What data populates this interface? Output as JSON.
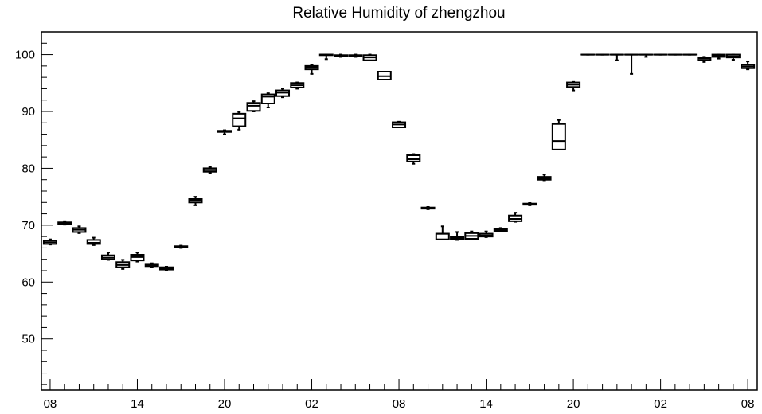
{
  "chart_data": {
    "type": "box",
    "title": "Relative Humidity of zhengzhou",
    "xlabel": "",
    "ylabel": "",
    "ylim": [
      41,
      104
    ],
    "y_ticks": [
      50,
      60,
      70,
      80,
      90,
      100
    ],
    "x_tick_labels": [
      "08",
      "14",
      "20",
      "02",
      "08",
      "14",
      "20",
      "02",
      "08"
    ],
    "x_tick_label_hours": [
      0,
      6,
      12,
      18,
      24,
      30,
      36,
      42,
      48
    ],
    "grid": false,
    "boxes": [
      {
        "hour": 0,
        "min": 66.6,
        "q1": 66.7,
        "median": 67.0,
        "q3": 67.3,
        "max": 67.5
      },
      {
        "hour": 1,
        "min": 70.1,
        "q1": 70.2,
        "median": 70.4,
        "q3": 70.5,
        "max": 70.7
      },
      {
        "hour": 2,
        "min": 68.6,
        "q1": 68.8,
        "median": 69.2,
        "q3": 69.5,
        "max": 69.8
      },
      {
        "hour": 3,
        "min": 66.5,
        "q1": 66.7,
        "median": 66.9,
        "q3": 67.4,
        "max": 67.8
      },
      {
        "hour": 4,
        "min": 63.9,
        "q1": 64.0,
        "median": 64.3,
        "q3": 64.7,
        "max": 65.2
      },
      {
        "hour": 5,
        "min": 62.3,
        "q1": 62.6,
        "median": 63.0,
        "q3": 63.5,
        "max": 63.9
      },
      {
        "hour": 6,
        "min": 63.6,
        "q1": 63.8,
        "median": 64.4,
        "q3": 64.8,
        "max": 65.2
      },
      {
        "hour": 7,
        "min": 62.7,
        "q1": 62.8,
        "median": 63.0,
        "q3": 63.2,
        "max": 63.3
      },
      {
        "hour": 8,
        "min": 62.1,
        "q1": 62.2,
        "median": 62.4,
        "q3": 62.6,
        "max": 62.7
      },
      {
        "hour": 9,
        "min": 66.0,
        "q1": 66.1,
        "median": 66.2,
        "q3": 66.3,
        "max": 66.4
      },
      {
        "hour": 10,
        "min": 73.5,
        "q1": 74.0,
        "median": 74.4,
        "q3": 74.6,
        "max": 75.0
      },
      {
        "hour": 11,
        "min": 79.2,
        "q1": 79.4,
        "median": 79.7,
        "q3": 80.0,
        "max": 80.2
      },
      {
        "hour": 12,
        "min": 86.0,
        "q1": 86.4,
        "median": 86.5,
        "q3": 86.6,
        "max": 86.7
      },
      {
        "hour": 13,
        "min": 86.8,
        "q1": 87.4,
        "median": 88.8,
        "q3": 89.6,
        "max": 89.9
      },
      {
        "hour": 14,
        "min": 90.0,
        "q1": 90.1,
        "median": 91.0,
        "q3": 91.5,
        "max": 91.8
      },
      {
        "hour": 15,
        "min": 90.7,
        "q1": 91.4,
        "median": 92.6,
        "q3": 93.0,
        "max": 93.2
      },
      {
        "hour": 16,
        "min": 92.5,
        "q1": 92.7,
        "median": 93.3,
        "q3": 93.7,
        "max": 94.0
      },
      {
        "hour": 17,
        "min": 94.0,
        "q1": 94.2,
        "median": 94.6,
        "q3": 95.0,
        "max": 95.1
      },
      {
        "hour": 18,
        "min": 96.6,
        "q1": 97.4,
        "median": 97.8,
        "q3": 98.0,
        "max": 98.2
      },
      {
        "hour": 19,
        "min": 99.2,
        "q1": 99.9,
        "median": 100.0,
        "q3": 100.0,
        "max": 100.0
      },
      {
        "hour": 20,
        "min": 99.6,
        "q1": 99.7,
        "median": 99.8,
        "q3": 99.9,
        "max": 100.0
      },
      {
        "hour": 21,
        "min": 99.6,
        "q1": 99.7,
        "median": 99.8,
        "q3": 99.9,
        "max": 100.0
      },
      {
        "hour": 22,
        "min": 99.0,
        "q1": 99.0,
        "median": 99.5,
        "q3": 99.9,
        "max": 100.0
      },
      {
        "hour": 23,
        "min": 95.6,
        "q1": 95.6,
        "median": 96.2,
        "q3": 97.0,
        "max": 97.0
      },
      {
        "hour": 24,
        "min": 87.2,
        "q1": 87.2,
        "median": 87.7,
        "q3": 88.1,
        "max": 88.2
      },
      {
        "hour": 25,
        "min": 80.8,
        "q1": 81.2,
        "median": 81.6,
        "q3": 82.3,
        "max": 82.5
      },
      {
        "hour": 26,
        "min": 72.8,
        "q1": 72.9,
        "median": 73.0,
        "q3": 73.1,
        "max": 73.2
      },
      {
        "hour": 27,
        "min": 67.5,
        "q1": 67.5,
        "median": 68.5,
        "q3": 68.5,
        "max": 69.8
      },
      {
        "hour": 28,
        "min": 67.4,
        "q1": 67.5,
        "median": 67.7,
        "q3": 67.9,
        "max": 68.8
      },
      {
        "hour": 29,
        "min": 67.5,
        "q1": 67.6,
        "median": 68.1,
        "q3": 68.6,
        "max": 68.9
      },
      {
        "hour": 30,
        "min": 67.9,
        "q1": 68.0,
        "median": 68.2,
        "q3": 68.5,
        "max": 68.9
      },
      {
        "hour": 31,
        "min": 68.9,
        "q1": 69.0,
        "median": 69.2,
        "q3": 69.4,
        "max": 69.5
      },
      {
        "hour": 32,
        "min": 70.6,
        "q1": 70.7,
        "median": 71.1,
        "q3": 71.7,
        "max": 72.2
      },
      {
        "hour": 33,
        "min": 73.5,
        "q1": 73.6,
        "median": 73.7,
        "q3": 73.8,
        "max": 73.9
      },
      {
        "hour": 34,
        "min": 77.9,
        "q1": 78.0,
        "median": 78.2,
        "q3": 78.5,
        "max": 78.9
      },
      {
        "hour": 35,
        "min": 83.3,
        "q1": 83.3,
        "median": 84.8,
        "q3": 87.8,
        "max": 88.5
      },
      {
        "hour": 36,
        "min": 93.7,
        "q1": 94.3,
        "median": 94.7,
        "q3": 95.1,
        "max": 95.2
      },
      {
        "hour": 37,
        "min": 100.0,
        "q1": 100.0,
        "median": 100.0,
        "q3": 100.0,
        "max": 100.0
      },
      {
        "hour": 38,
        "min": 100.0,
        "q1": 100.0,
        "median": 100.0,
        "q3": 100.0,
        "max": 100.0
      },
      {
        "hour": 39,
        "min": 99.0,
        "q1": 100.0,
        "median": 100.0,
        "q3": 100.0,
        "max": 100.0
      },
      {
        "hour": 40,
        "min": 96.6,
        "q1": 100.0,
        "median": 100.0,
        "q3": 100.0,
        "max": 100.0
      },
      {
        "hour": 41,
        "min": 99.6,
        "q1": 100.0,
        "median": 100.0,
        "q3": 100.0,
        "max": 100.0
      },
      {
        "hour": 42,
        "min": 100.0,
        "q1": 100.0,
        "median": 100.0,
        "q3": 100.0,
        "max": 100.0
      },
      {
        "hour": 43,
        "min": 100.0,
        "q1": 100.0,
        "median": 100.0,
        "q3": 100.0,
        "max": 100.0
      },
      {
        "hour": 44,
        "min": 100.0,
        "q1": 100.0,
        "median": 100.0,
        "q3": 100.0,
        "max": 100.0
      },
      {
        "hour": 45,
        "min": 98.7,
        "q1": 99.0,
        "median": 99.3,
        "q3": 99.5,
        "max": 99.6
      },
      {
        "hour": 46,
        "min": 99.3,
        "q1": 99.6,
        "median": 99.8,
        "q3": 100.0,
        "max": 100.0
      },
      {
        "hour": 47,
        "min": 99.1,
        "q1": 99.5,
        "median": 99.7,
        "q3": 100.0,
        "max": 100.0
      },
      {
        "hour": 48,
        "min": 97.4,
        "q1": 97.6,
        "median": 97.9,
        "q3": 98.2,
        "max": 98.8
      }
    ]
  }
}
